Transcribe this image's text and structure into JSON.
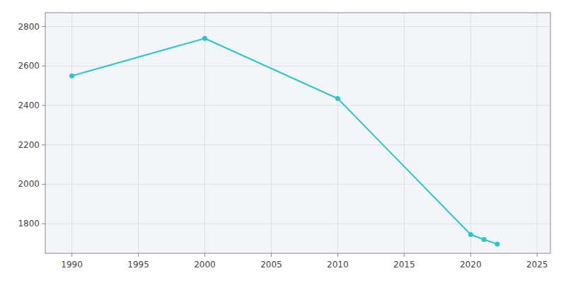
{
  "chart_data": {
    "type": "line",
    "x": [
      1990,
      2000,
      2010,
      2020,
      2021,
      2022
    ],
    "values": [
      2550,
      2740,
      2435,
      1745,
      1720,
      1697
    ],
    "color": "#2dc6c8",
    "marker": "circle",
    "xlim": [
      1988,
      2026
    ],
    "ylim": [
      1650,
      2870
    ],
    "xticks": [
      1990,
      1995,
      2000,
      2005,
      2010,
      2015,
      2020,
      2025
    ],
    "yticks": [
      1800,
      2000,
      2200,
      2400,
      2600,
      2800
    ],
    "grid": true
  }
}
